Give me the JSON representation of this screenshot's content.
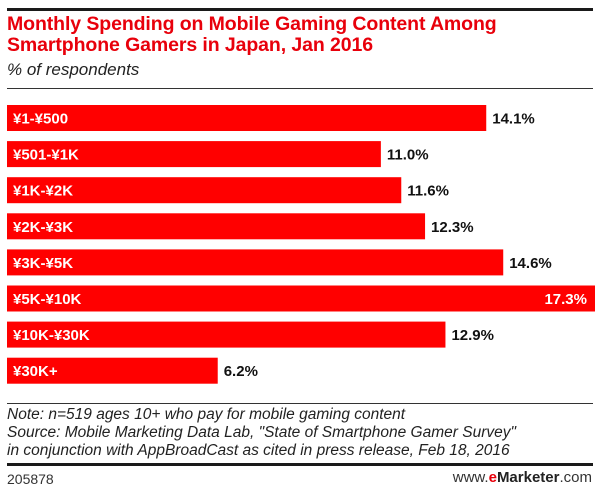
{
  "header": {
    "title": "Monthly Spending on Mobile Gaming Content Among Smartphone Gamers in Japan, Jan 2016",
    "subtitle": "% of respondents"
  },
  "colors": {
    "bar": "#ff0000",
    "title": "#e8000b",
    "value_text": "#111111",
    "inside_value_text": "#ffffff"
  },
  "chart_data": {
    "type": "bar",
    "orientation": "horizontal",
    "title": "Monthly Spending on Mobile Gaming Content Among Smartphone Gamers in Japan, Jan 2016",
    "subtitle": "% of respondents",
    "xlabel": "",
    "ylabel": "",
    "categories": [
      "¥1-¥500",
      "¥501-¥1K",
      "¥1K-¥2K",
      "¥2K-¥3K",
      "¥3K-¥5K",
      "¥5K-¥10K",
      "¥10K-¥30K",
      "¥30K+"
    ],
    "values": [
      14.1,
      11.0,
      11.6,
      12.3,
      14.6,
      17.3,
      12.9,
      6.2
    ],
    "value_labels": [
      "14.1%",
      "11.0%",
      "11.6%",
      "12.3%",
      "14.6%",
      "17.3%",
      "12.9%",
      "6.2%"
    ],
    "xlim": [
      0,
      17.3
    ],
    "grid": false,
    "legend": "none"
  },
  "footer": {
    "note": "Note: n=519 ages 10+ who pay for mobile gaming content",
    "source_line1": "Source: Mobile Marketing Data Lab, \"State of Smartphone Gamer Survey\"",
    "source_line2": "in conjunction with AppBroadCast as cited in press release, Feb 18, 2016",
    "chart_id": "205878",
    "brand_prefix": "www.",
    "brand_e": "e",
    "brand_name": "Marketer",
    "brand_suffix": ".com"
  }
}
